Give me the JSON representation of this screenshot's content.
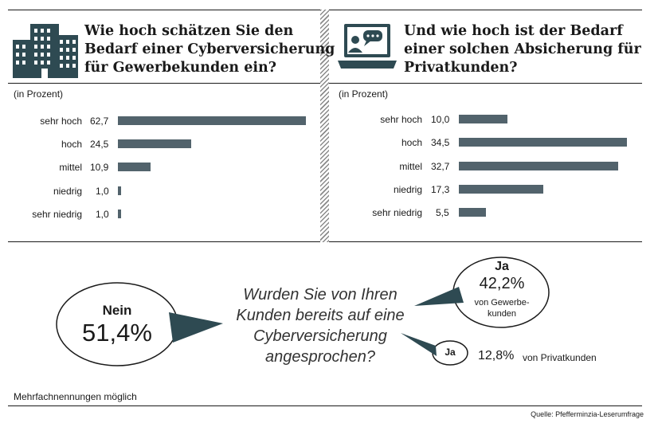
{
  "colors": {
    "bar": "#52636c",
    "bubble_tail": "#2e4a52",
    "text": "#1a1a1a"
  },
  "left_panel": {
    "icon": "office-building-icon",
    "title": [
      "Wie hoch schätzen Sie den",
      "Bedarf einer Cyberversicherung",
      "für Gewerbekunden ein?"
    ],
    "unit": "(in Prozent)"
  },
  "right_panel": {
    "icon": "laptop-chat-icon",
    "title": [
      "Und wie hoch ist der Bedarf",
      "einer solchen Absicherung für",
      "Privatkunden?"
    ],
    "unit": "(in Prozent)"
  },
  "chart_data": [
    {
      "type": "bar",
      "orientation": "horizontal",
      "title": "Wie hoch schätzen Sie den Bedarf einer Cyberversicherung für Gewerbekunden ein?",
      "unit": "(in Prozent)",
      "categories": [
        "sehr hoch",
        "hoch",
        "mittel",
        "niedrig",
        "sehr niedrig"
      ],
      "values": [
        62.7,
        24.5,
        10.9,
        1.0,
        1.0
      ],
      "value_labels": [
        "62,7",
        "24,5",
        "10,9",
        "1,0",
        "1,0"
      ]
    },
    {
      "type": "bar",
      "orientation": "horizontal",
      "title": "Und wie hoch ist der Bedarf einer solchen Absicherung für Privatkunden?",
      "unit": "(in Prozent)",
      "categories": [
        "sehr hoch",
        "hoch",
        "mittel",
        "niedrig",
        "sehr niedrig"
      ],
      "values": [
        10.0,
        34.5,
        32.7,
        17.3,
        5.5
      ],
      "value_labels": [
        "10,0",
        "34,5",
        "32,7",
        "17,3",
        "5,5"
      ]
    }
  ],
  "question": {
    "lines": [
      "Wurden Sie von Ihren",
      "Kunden bereits auf eine",
      "Cyberversicherung",
      "angesprochen?"
    ],
    "nein": {
      "label": "Nein",
      "value": "51,4%"
    },
    "ja_gewerbe": {
      "label": "Ja",
      "value": "42,2%",
      "sub": [
        "von Gewerbe-",
        "kunden"
      ]
    },
    "ja_privat": {
      "label": "Ja",
      "value": "12,8%",
      "sub": "von Privatkunden"
    }
  },
  "footnote": "Mehrfachnennungen möglich",
  "source": "Quelle: Pfefferminzia-Leserumfrage"
}
